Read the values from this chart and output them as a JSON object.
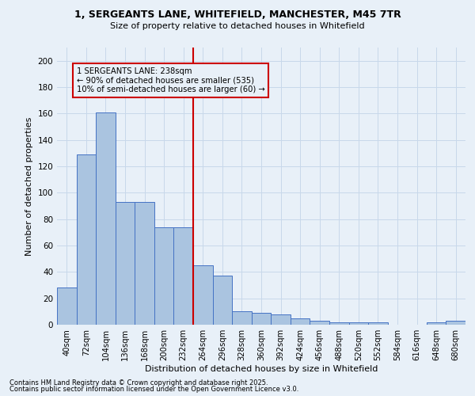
{
  "title_line1": "1, SERGEANTS LANE, WHITEFIELD, MANCHESTER, M45 7TR",
  "title_line2": "Size of property relative to detached houses in Whitefield",
  "xlabel": "Distribution of detached houses by size in Whitefield",
  "ylabel": "Number of detached properties",
  "footer_line1": "Contains HM Land Registry data © Crown copyright and database right 2025.",
  "footer_line2": "Contains public sector information licensed under the Open Government Licence v3.0.",
  "bar_labels": [
    "40sqm",
    "72sqm",
    "104sqm",
    "136sqm",
    "168sqm",
    "200sqm",
    "232sqm",
    "264sqm",
    "296sqm",
    "328sqm",
    "360sqm",
    "392sqm",
    "424sqm",
    "456sqm",
    "488sqm",
    "520sqm",
    "552sqm",
    "584sqm",
    "616sqm",
    "648sqm",
    "680sqm"
  ],
  "bar_values": [
    28,
    129,
    161,
    93,
    93,
    74,
    74,
    45,
    37,
    10,
    9,
    8,
    5,
    3,
    2,
    2,
    2,
    0,
    0,
    2,
    3
  ],
  "bar_color": "#aac4e0",
  "bar_edge_color": "#4472c4",
  "grid_color": "#c8d8ea",
  "bg_color": "#e8f0f8",
  "vline_color": "#cc0000",
  "annotation_box_color": "#cc0000",
  "annotation_text": "1 SERGEANTS LANE: 238sqm\n← 90% of detached houses are smaller (535)\n10% of semi-detached houses are larger (60) →",
  "vline_pos": 6.5,
  "ylim": [
    0,
    210
  ],
  "yticks": [
    0,
    20,
    40,
    60,
    80,
    100,
    120,
    140,
    160,
    180,
    200
  ]
}
